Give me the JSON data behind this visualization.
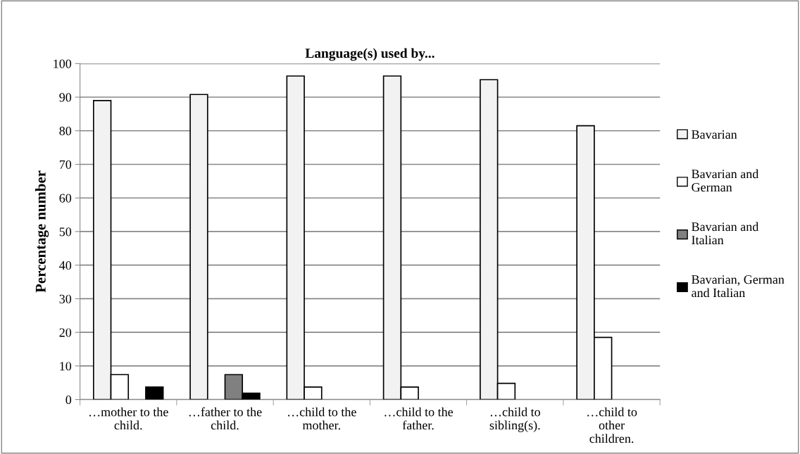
{
  "chart_data": {
    "type": "bar",
    "title": "Language(s) used by...",
    "ylabel": "Percentage number",
    "categories": [
      "…mother to the child.",
      "…father to the child.",
      "…child to the mother.",
      "…child to the father.",
      "…child to sibling(s).",
      "…child to other children."
    ],
    "series": [
      {
        "name": "Bavarian",
        "color": "#f2f2f2",
        "values": [
          89,
          90.8,
          96.3,
          96.3,
          95.2,
          81.5
        ]
      },
      {
        "name": "Bavarian and German",
        "color": "#ffffff",
        "values": [
          7.4,
          null,
          3.7,
          3.7,
          4.8,
          18.5
        ]
      },
      {
        "name": "Bavarian and Italian",
        "color": "#808080",
        "values": [
          null,
          7.4,
          null,
          null,
          null,
          null
        ]
      },
      {
        "name": "Bavarian, German and Italian",
        "color": "#000000",
        "values": [
          3.7,
          1.9,
          null,
          null,
          null,
          null
        ]
      }
    ],
    "ylim": [
      0,
      100
    ],
    "yticks": [
      0,
      10,
      20,
      30,
      40,
      50,
      60,
      70,
      80,
      90,
      100
    ],
    "grid": "y",
    "legend": "right"
  }
}
